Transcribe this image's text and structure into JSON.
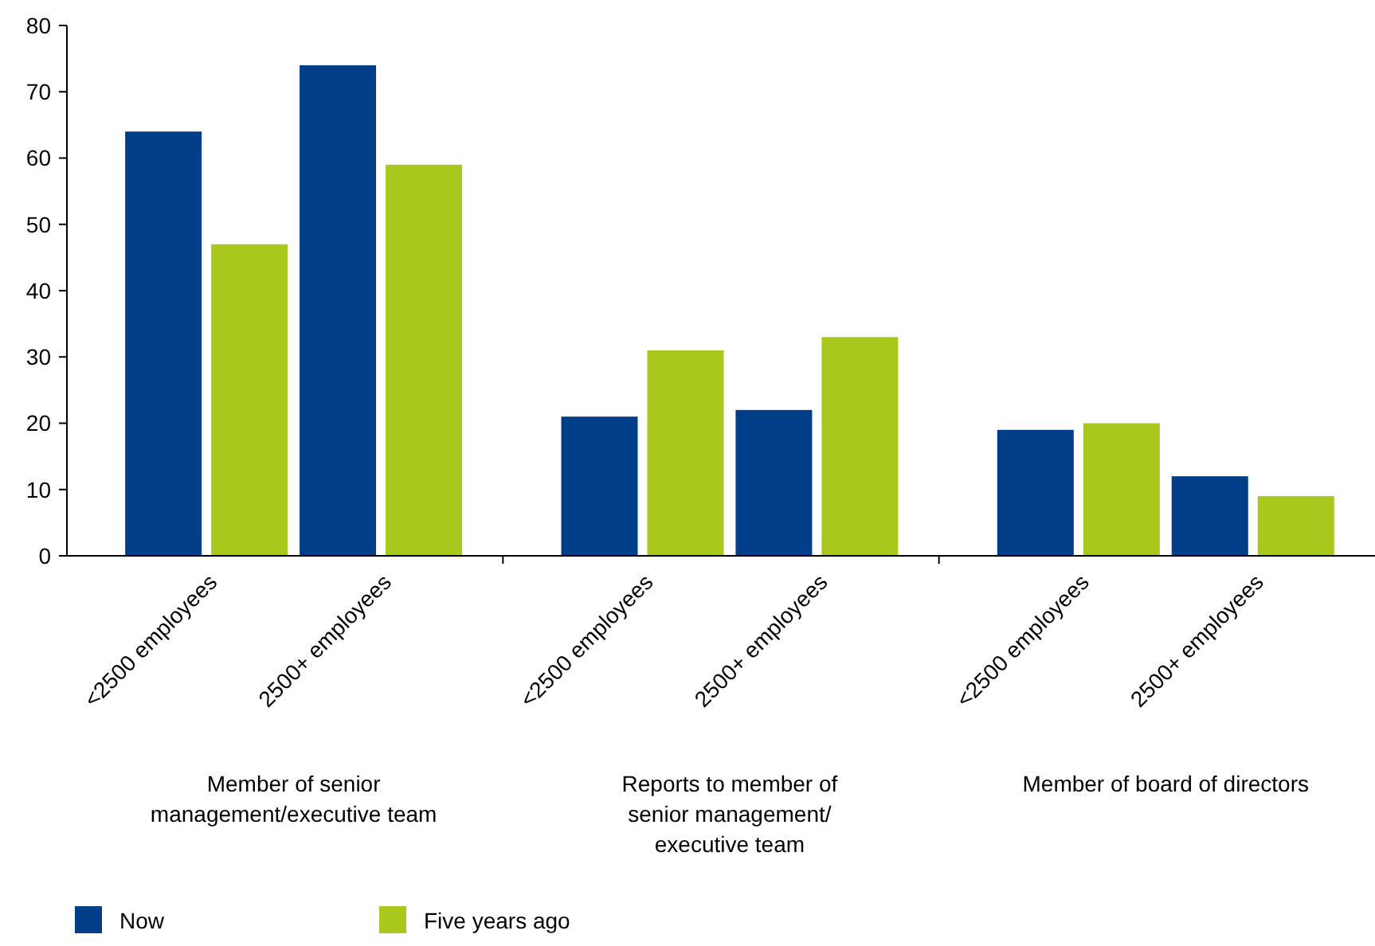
{
  "chart_data": {
    "type": "bar",
    "categories": [
      "<2500 employees",
      "2500+ employees",
      "<2500 employees",
      "2500+ employees",
      "<2500 employees",
      "2500+ employees"
    ],
    "series": [
      {
        "name": "Now",
        "color": "#003f87",
        "values": [
          64,
          74,
          21,
          22,
          19,
          12
        ]
      },
      {
        "name": "Five years ago",
        "color": "#a8c81e",
        "values": [
          47,
          59,
          31,
          33,
          20,
          9
        ]
      }
    ],
    "ylim": [
      0,
      80
    ],
    "yticks": [
      0,
      10,
      20,
      30,
      40,
      50,
      60,
      70,
      80
    ],
    "grid": false,
    "legend": "bottom left",
    "annotations": [
      "Member of senior\nmanagement/executive team",
      "Reports to member of\nsenior management/\nexecutive team",
      "Member of board of directors"
    ]
  }
}
